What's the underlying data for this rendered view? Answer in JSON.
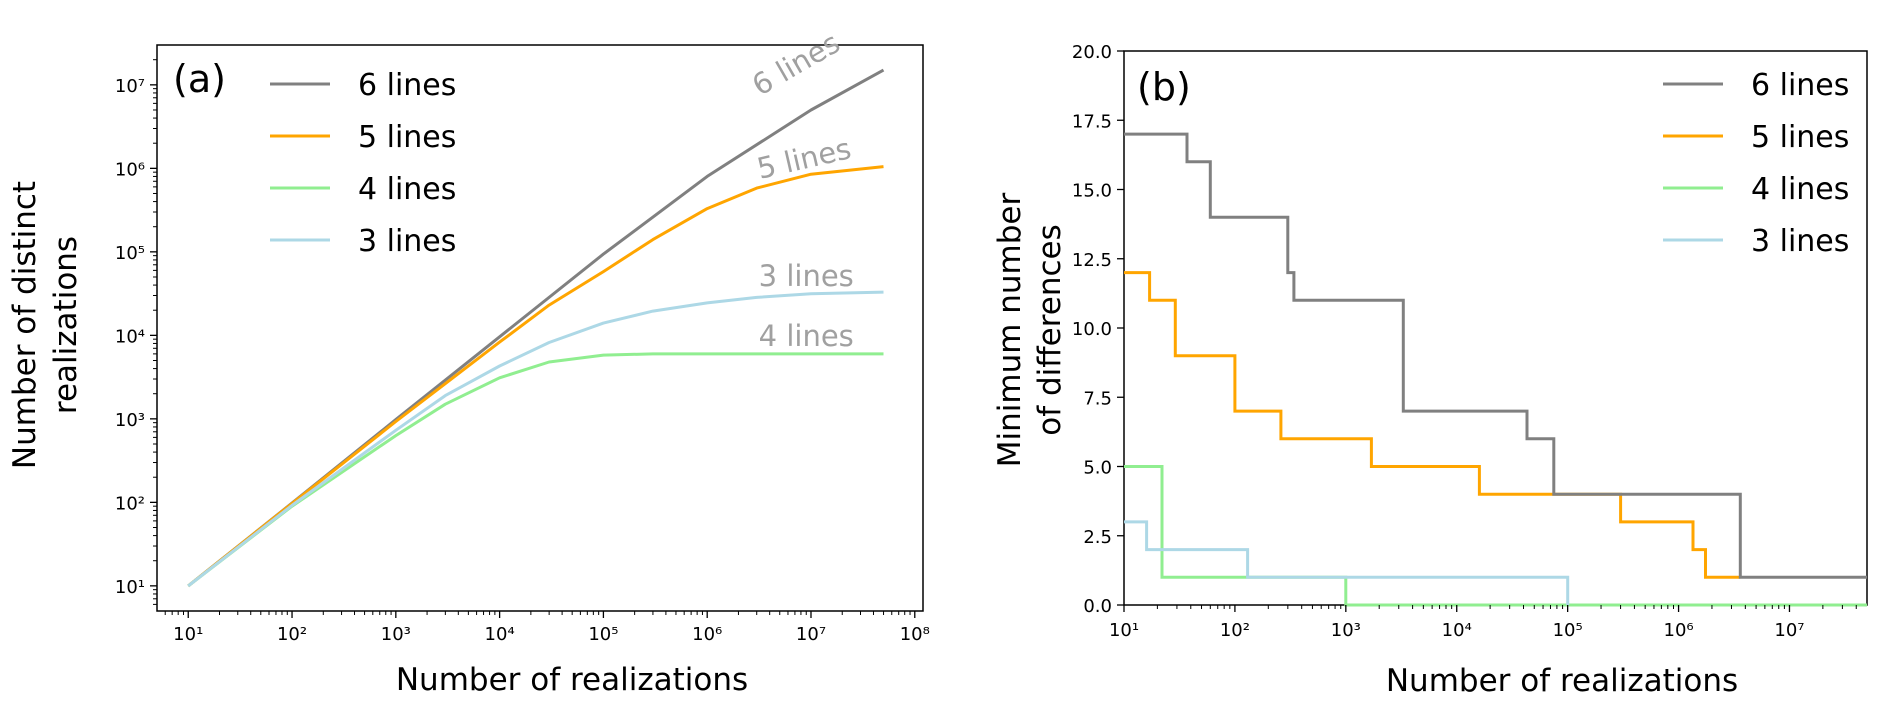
{
  "colors": {
    "6 lines": "#808080",
    "5 lines": "#ffa500",
    "4 lines": "#90ee90",
    "3 lines": "#add8e6"
  },
  "chart_data": [
    {
      "type": "line",
      "panel_label": "(a)",
      "xlabel": "Number of realizations",
      "ylabel_lines": [
        "Number of distinct",
        "realizations"
      ],
      "xscale": "log",
      "yscale": "log",
      "xlim": [
        5,
        120000000
      ],
      "ylim": [
        5,
        30000000
      ],
      "xticks": [
        10,
        100,
        1000,
        10000,
        100000,
        1000000,
        10000000,
        100000000
      ],
      "yticks": [
        10,
        100,
        1000,
        10000,
        100000,
        1000000,
        10000000
      ],
      "legend": [
        "6 lines",
        "5 lines",
        "4 lines",
        "3 lines"
      ],
      "legend_position": "top-left",
      "inline_labels": [
        {
          "text": "6 lines",
          "series": "6 lines",
          "x": 8000000,
          "y": 14000000
        },
        {
          "text": "5 lines",
          "series": "5 lines",
          "x": 9000000,
          "y": 1000000
        },
        {
          "text": "3 lines",
          "series": "3 lines",
          "x": 9000000,
          "y": 39000
        },
        {
          "text": "4 lines",
          "series": "4 lines",
          "x": 9000000,
          "y": 7500
        }
      ],
      "series": [
        {
          "name": "6 lines",
          "x": [
            10,
            100,
            1000,
            10000,
            100000,
            1000000,
            10000000,
            50000000
          ],
          "y": [
            10,
            98,
            980,
            9600,
            94000,
            800000,
            5000000,
            15000000
          ]
        },
        {
          "name": "5 lines",
          "x": [
            10,
            100,
            1000,
            10000,
            30000,
            100000,
            300000,
            1000000,
            3000000,
            10000000,
            50000000
          ],
          "y": [
            10,
            97,
            930,
            8300,
            23000,
            58000,
            140000,
            330000,
            580000,
            850000,
            1050000
          ]
        },
        {
          "name": "4 lines",
          "x": [
            10,
            100,
            1000,
            3000,
            10000,
            30000,
            100000,
            300000,
            1000000,
            50000000
          ],
          "y": [
            10,
            90,
            630,
            1500,
            3100,
            4800,
            5800,
            6000,
            6000,
            6000
          ]
        },
        {
          "name": "3 lines",
          "x": [
            10,
            100,
            1000,
            3000,
            10000,
            30000,
            100000,
            300000,
            1000000,
            3000000,
            10000000,
            50000000
          ],
          "y": [
            10,
            92,
            730,
            1900,
            4300,
            8200,
            14000,
            19500,
            24500,
            28500,
            31500,
            33000
          ]
        }
      ]
    },
    {
      "type": "line",
      "panel_label": "(b)",
      "xlabel": "Number of realizations",
      "ylabel_lines": [
        "Minimum number",
        "of differences"
      ],
      "xscale": "log",
      "yscale": "linear",
      "xlim": [
        10,
        50000000
      ],
      "ylim": [
        0,
        20
      ],
      "xticks": [
        10,
        100,
        1000,
        10000,
        100000,
        1000000,
        10000000
      ],
      "yticks": [
        0,
        2.5,
        5,
        7.5,
        10,
        12.5,
        15,
        17.5,
        20
      ],
      "ytick_labels": [
        "0.0",
        "2.5",
        "5.0",
        "7.5",
        "10.0",
        "12.5",
        "15.0",
        "17.5",
        "20.0"
      ],
      "legend": [
        "6 lines",
        "5 lines",
        "4 lines",
        "3 lines"
      ],
      "legend_position": "top-right",
      "series": [
        {
          "name": "6 lines",
          "step": true,
          "x": [
            10,
            37,
            60,
            300,
            340,
            3300,
            43000,
            75000,
            3600000,
            50000000
          ],
          "y": [
            17,
            16,
            14,
            12,
            11,
            7,
            6,
            4,
            1,
            1
          ]
        },
        {
          "name": "5 lines",
          "step": true,
          "x": [
            10,
            17,
            29,
            100,
            260,
            1700,
            16000,
            300000,
            1350000,
            1750000,
            3600000
          ],
          "y": [
            12,
            11,
            9,
            7,
            6,
            5,
            4,
            3,
            2,
            1,
            1
          ]
        },
        {
          "name": "4 lines",
          "step": true,
          "x": [
            10,
            22,
            1000,
            50000000
          ],
          "y": [
            5,
            1,
            0,
            0
          ]
        },
        {
          "name": "3 lines",
          "step": true,
          "x": [
            10,
            16,
            130,
            100000
          ],
          "y": [
            3,
            2,
            1,
            0
          ]
        }
      ]
    }
  ]
}
